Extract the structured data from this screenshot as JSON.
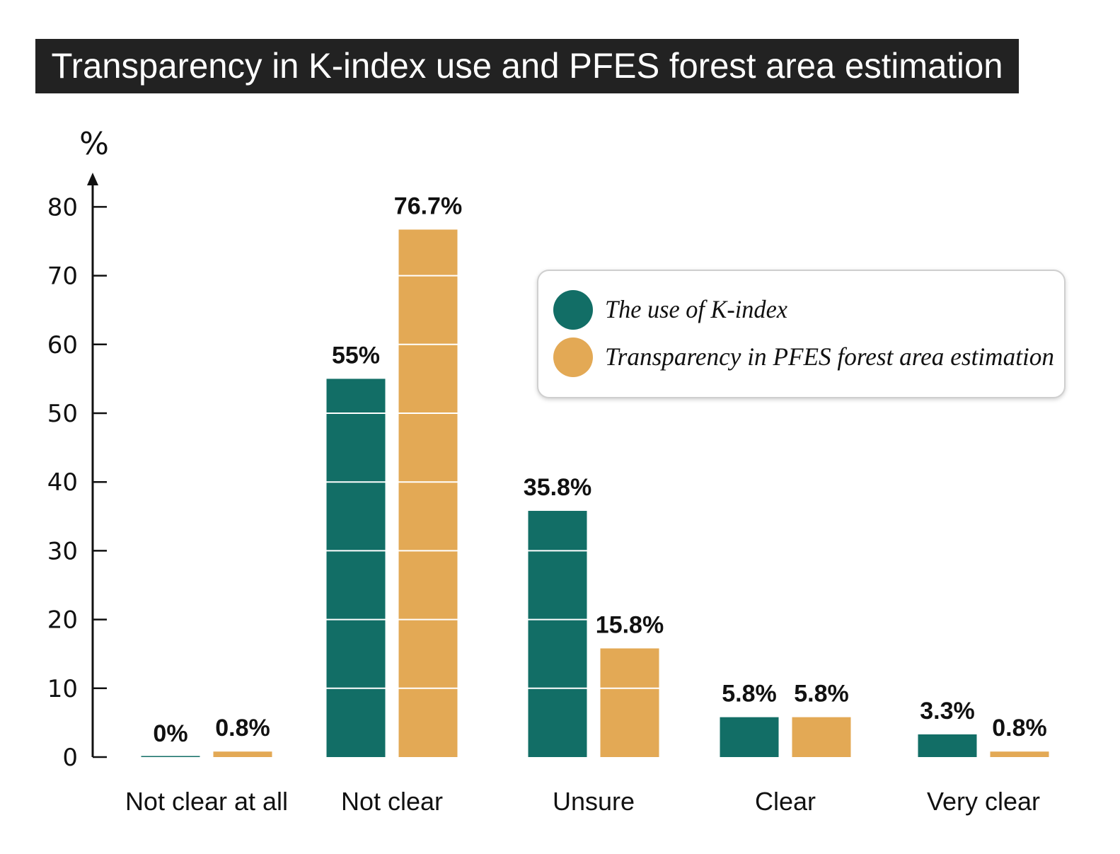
{
  "colors": {
    "series1": "#126e66",
    "series2": "#e3a955",
    "title_bg": "#222222",
    "title_fg": "#ffffff",
    "axis": "#111111"
  },
  "chart_data": {
    "type": "bar",
    "title": "Transparency in K-index use and PFES forest area estimation",
    "ylabel": "%",
    "xlabel": "",
    "ylim": [
      0,
      80
    ],
    "yticks": [
      0,
      10,
      20,
      30,
      40,
      50,
      60,
      70,
      80
    ],
    "grid": "white bands inside bars",
    "legend_position": "top-right",
    "categories": [
      "Not clear at all",
      "Not clear",
      "Unsure",
      "Clear",
      "Very clear"
    ],
    "series": [
      {
        "name": "The use of K-index",
        "values": [
          0,
          55,
          35.8,
          5.8,
          3.3
        ],
        "labels": [
          "0%",
          "55%",
          "35.8%",
          "5.8%",
          "3.3%"
        ]
      },
      {
        "name": "Transparency in PFES forest area estimation",
        "values": [
          0.8,
          76.7,
          15.8,
          5.8,
          0.8
        ],
        "labels": [
          "0.8%",
          "76.7%",
          "15.8%",
          "5.8%",
          "0.8%"
        ]
      }
    ]
  }
}
